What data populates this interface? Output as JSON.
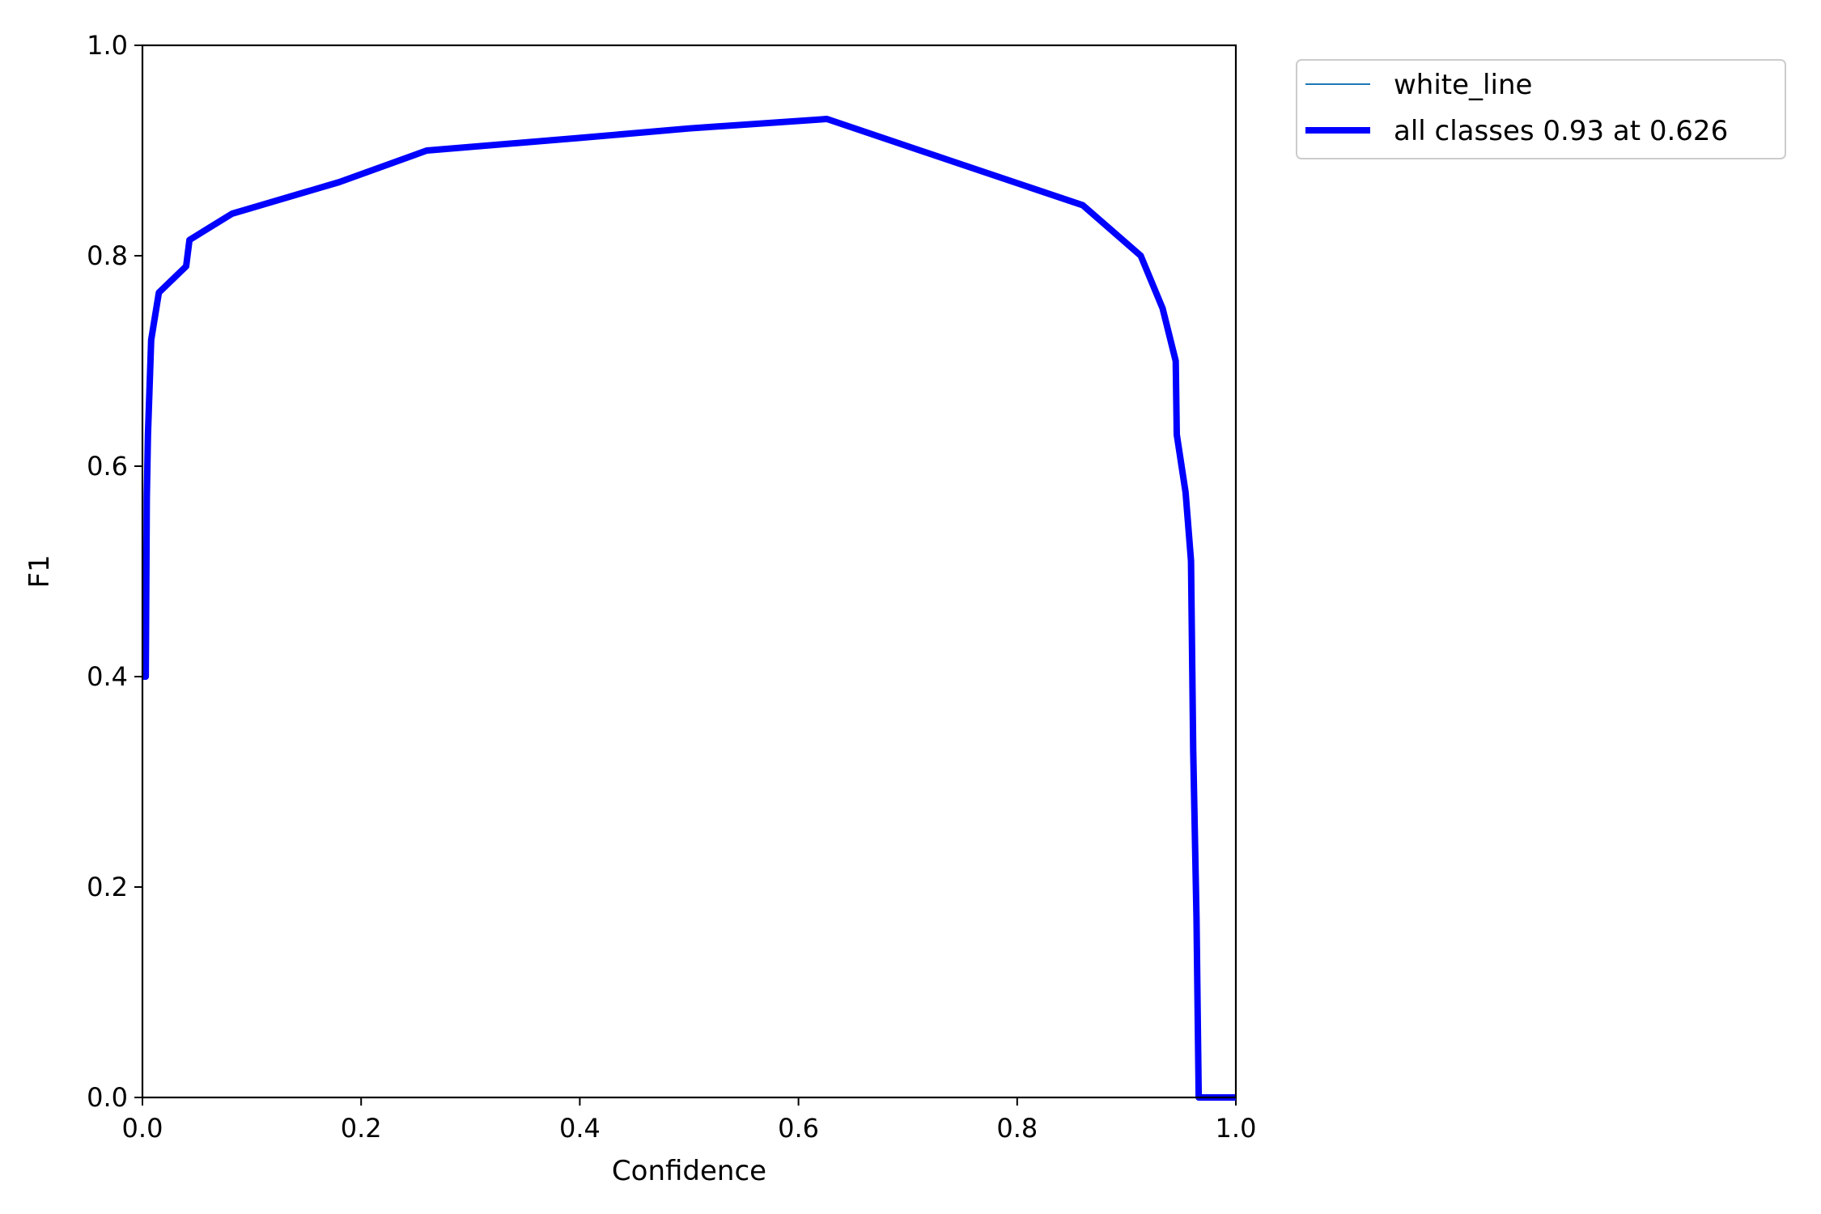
{
  "chart_data": {
    "type": "line",
    "title": "",
    "xlabel": "Confidence",
    "ylabel": "F1",
    "xlim": [
      0.0,
      1.0
    ],
    "ylim": [
      0.0,
      1.0
    ],
    "xticks": [
      "0.0",
      "0.2",
      "0.4",
      "0.6",
      "0.8",
      "1.0"
    ],
    "yticks": [
      "0.0",
      "0.2",
      "0.4",
      "0.6",
      "0.8",
      "1.0"
    ],
    "grid": false,
    "legend_position": "outside-top-right",
    "series": [
      {
        "name": "white_line",
        "color": "#1f77b4",
        "style": "thin",
        "x": [
          0.0,
          0.003,
          0.004,
          0.005,
          0.008,
          0.015,
          0.04,
          0.043,
          0.082,
          0.18,
          0.26,
          0.4,
          0.5,
          0.626,
          0.74,
          0.86,
          0.913,
          0.933,
          0.945,
          0.946,
          0.954,
          0.959,
          0.961,
          0.964,
          0.966,
          1.0
        ],
        "y": [
          0.4,
          0.4,
          0.57,
          0.63,
          0.72,
          0.765,
          0.79,
          0.815,
          0.84,
          0.87,
          0.9,
          0.912,
          0.921,
          0.93,
          0.89,
          0.848,
          0.8,
          0.75,
          0.7,
          0.63,
          0.575,
          0.51,
          0.33,
          0.17,
          0.0,
          0.0
        ]
      },
      {
        "name": "all classes 0.93 at 0.626",
        "color": "#0000ff",
        "style": "thick",
        "x": [
          0.0,
          0.003,
          0.004,
          0.005,
          0.008,
          0.015,
          0.04,
          0.043,
          0.082,
          0.18,
          0.26,
          0.4,
          0.5,
          0.626,
          0.74,
          0.86,
          0.913,
          0.933,
          0.945,
          0.946,
          0.954,
          0.959,
          0.961,
          0.964,
          0.966,
          1.0
        ],
        "y": [
          0.4,
          0.4,
          0.57,
          0.63,
          0.72,
          0.765,
          0.79,
          0.815,
          0.84,
          0.87,
          0.9,
          0.912,
          0.921,
          0.93,
          0.89,
          0.848,
          0.8,
          0.75,
          0.7,
          0.63,
          0.575,
          0.51,
          0.33,
          0.17,
          0.0,
          0.0
        ]
      }
    ]
  }
}
